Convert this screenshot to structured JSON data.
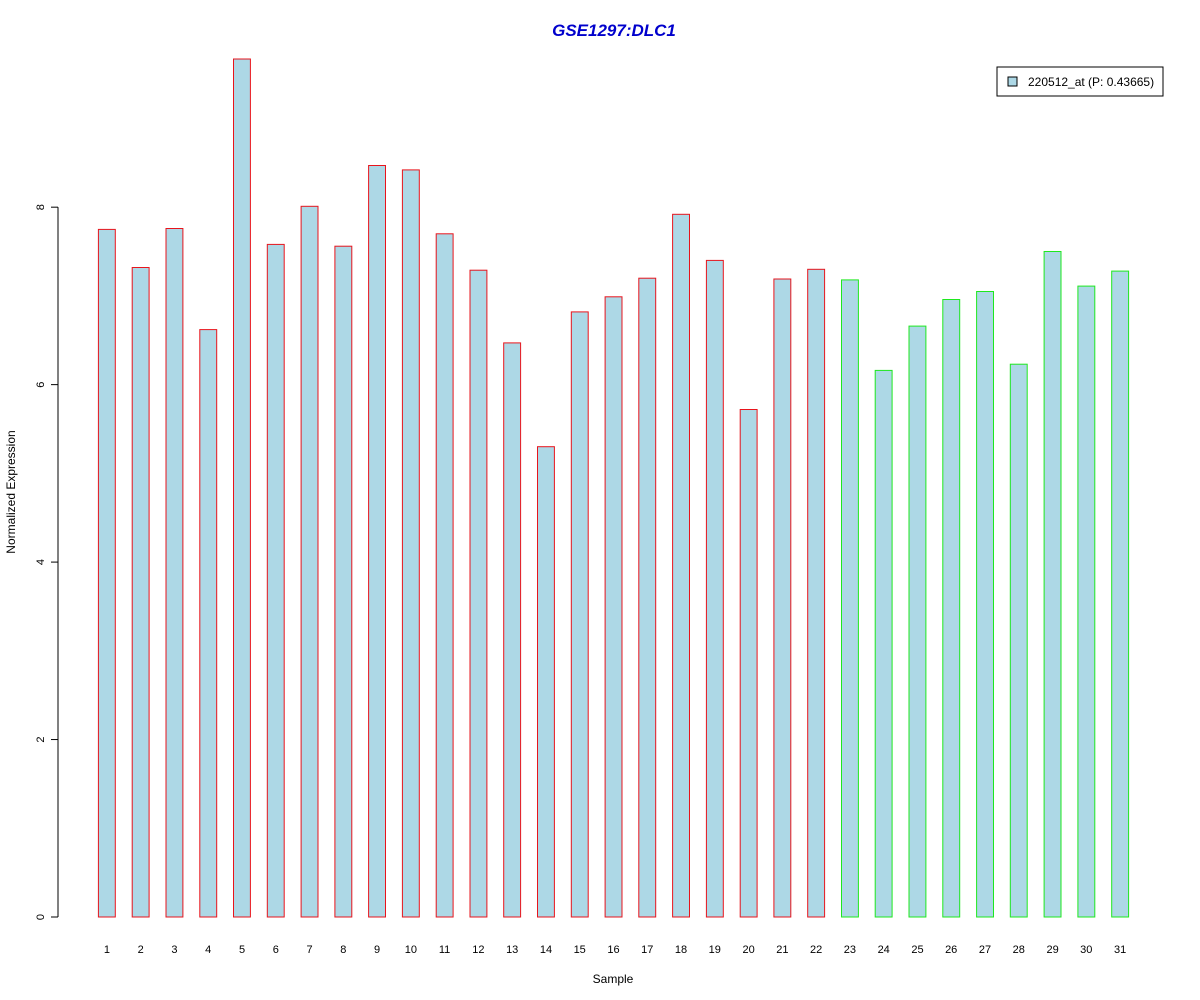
{
  "chart_data": {
    "type": "bar",
    "title": "GSE1297:DLC1",
    "xlabel": "Sample",
    "ylabel": "Normalized Expression",
    "categories": [
      "1",
      "2",
      "3",
      "4",
      "5",
      "6",
      "7",
      "8",
      "9",
      "10",
      "11",
      "12",
      "13",
      "14",
      "15",
      "16",
      "17",
      "18",
      "19",
      "20",
      "21",
      "22",
      "23",
      "24",
      "25",
      "26",
      "27",
      "28",
      "29",
      "30",
      "31"
    ],
    "series": [
      {
        "name": "220512_at (P: 0.43665)",
        "values": [
          7.75,
          7.32,
          7.76,
          6.62,
          9.67,
          7.58,
          8.01,
          7.56,
          8.47,
          8.42,
          7.7,
          7.29,
          6.47,
          5.3,
          6.82,
          6.99,
          7.2,
          7.92,
          7.4,
          5.72,
          7.19,
          7.3,
          7.18,
          6.16,
          6.66,
          6.96,
          7.05,
          6.23,
          7.5,
          7.11,
          7.28
        ]
      }
    ],
    "groups": [
      {
        "range": [
          1,
          22
        ],
        "border_color": "#e8141c"
      },
      {
        "range": [
          23,
          31
        ],
        "border_color": "#1ee81e"
      }
    ],
    "ylim": [
      0,
      9.67
    ],
    "yticks": [
      0,
      2,
      4,
      6,
      8
    ],
    "grid": false,
    "legend_position": "top-right",
    "colors": {
      "bar_fill": "#add8e6",
      "title": "#0000cc",
      "axis": "#000000"
    }
  }
}
